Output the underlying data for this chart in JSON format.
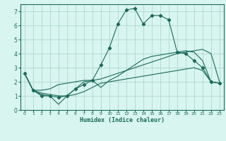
{
  "title": "",
  "xlabel": "Humidex (Indice chaleur)",
  "ylabel": "",
  "xlim": [
    -0.5,
    23.5
  ],
  "ylim": [
    0,
    7.5
  ],
  "xticks": [
    0,
    1,
    2,
    3,
    4,
    5,
    6,
    7,
    8,
    9,
    10,
    11,
    12,
    13,
    14,
    15,
    16,
    17,
    18,
    19,
    20,
    21,
    22,
    23
  ],
  "yticks": [
    0,
    1,
    2,
    3,
    4,
    5,
    6,
    7
  ],
  "bg_color": "#d8f5ef",
  "grid_color": "#afd8cf",
  "line_color": "#1a6b5a",
  "lines": [
    {
      "x": [
        0,
        1,
        2,
        3,
        4,
        5,
        6,
        7,
        8,
        9,
        10,
        11,
        12,
        13,
        14,
        15,
        16,
        17,
        18,
        19,
        20,
        21,
        22,
        23
      ],
      "y": [
        2.6,
        1.4,
        1.0,
        1.0,
        0.9,
        1.0,
        1.5,
        1.8,
        2.1,
        3.2,
        4.4,
        6.1,
        7.1,
        7.2,
        6.1,
        6.7,
        6.7,
        6.4,
        4.1,
        4.0,
        3.5,
        3.0,
        2.0,
        1.9
      ],
      "marker": true
    },
    {
      "x": [
        0,
        1,
        2,
        3,
        4,
        5,
        6,
        7,
        8,
        9,
        10,
        11,
        12,
        13,
        14,
        15,
        16,
        17,
        18,
        19,
        20,
        21,
        22,
        23
      ],
      "y": [
        2.6,
        1.4,
        1.4,
        1.5,
        1.8,
        1.9,
        2.0,
        2.1,
        2.1,
        2.2,
        2.4,
        2.6,
        2.8,
        3.0,
        3.2,
        3.4,
        3.6,
        3.8,
        4.0,
        4.1,
        4.2,
        4.3,
        4.0,
        2.0
      ],
      "marker": false
    },
    {
      "x": [
        0,
        1,
        2,
        3,
        4,
        5,
        6,
        7,
        8,
        9,
        10,
        11,
        12,
        13,
        14,
        15,
        16,
        17,
        18,
        19,
        20,
        21,
        22,
        23
      ],
      "y": [
        2.6,
        1.4,
        1.2,
        1.1,
        1.0,
        1.0,
        1.1,
        1.3,
        1.6,
        1.9,
        2.0,
        2.1,
        2.2,
        2.3,
        2.4,
        2.5,
        2.6,
        2.7,
        2.8,
        2.9,
        3.0,
        2.8,
        2.0,
        1.9
      ],
      "marker": false
    },
    {
      "x": [
        0,
        1,
        2,
        3,
        4,
        5,
        6,
        7,
        8,
        9,
        10,
        11,
        12,
        13,
        14,
        15,
        16,
        17,
        18,
        19,
        20,
        21,
        22,
        23
      ],
      "y": [
        2.6,
        1.4,
        1.1,
        1.0,
        0.4,
        1.0,
        1.5,
        2.0,
        2.1,
        1.6,
        2.1,
        2.4,
        2.8,
        3.2,
        3.6,
        3.8,
        3.9,
        4.0,
        4.1,
        4.2,
        4.1,
        3.5,
        2.0,
        1.9
      ],
      "marker": false
    }
  ]
}
